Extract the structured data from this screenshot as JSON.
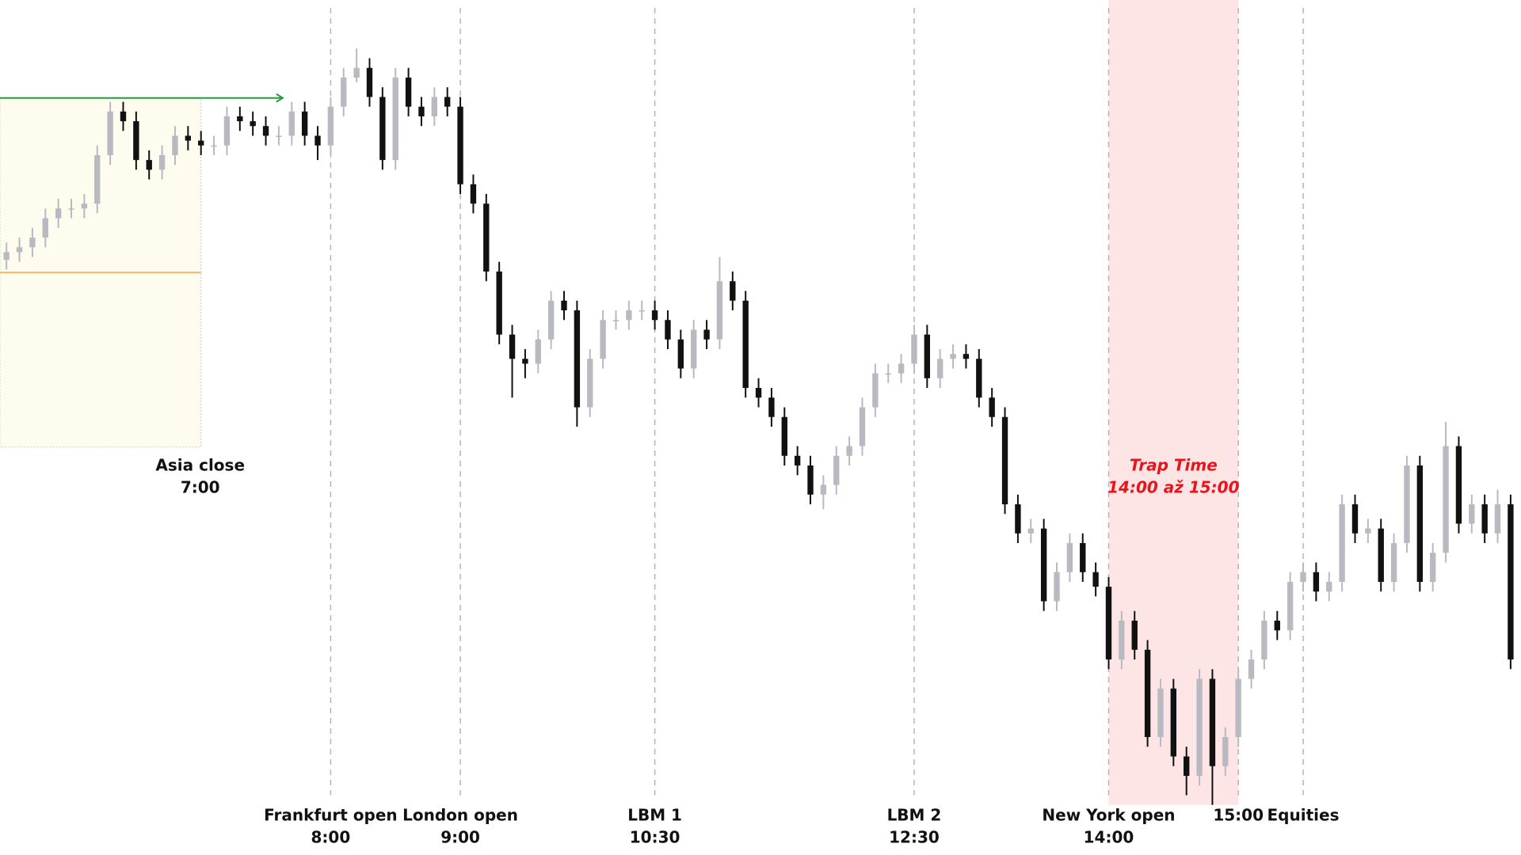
{
  "chart_data": {
    "type": "candlestick",
    "xlim": [
      5.45,
      17.18
    ],
    "ylim": [
      0,
      880
    ],
    "up_color": "#b9b9c2",
    "down_color": "#111111",
    "x": [
      5.5,
      5.6,
      5.7,
      5.8,
      5.9,
      6.0,
      6.1,
      6.2,
      6.3,
      6.4,
      6.5,
      6.6,
      6.7,
      6.8,
      6.9,
      7.0,
      7.1,
      7.2,
      7.3,
      7.4,
      7.5,
      7.6,
      7.7,
      7.8,
      7.9,
      8.0,
      8.1,
      8.2,
      8.3,
      8.4,
      8.5,
      8.6,
      8.7,
      8.8,
      8.9,
      9.0,
      9.1,
      9.2,
      9.3,
      9.4,
      9.5,
      9.6,
      9.7,
      9.8,
      9.9,
      10.0,
      10.1,
      10.2,
      10.3,
      10.4,
      10.5,
      10.6,
      10.7,
      10.8,
      10.9,
      11.0,
      11.1,
      11.2,
      11.3,
      11.4,
      11.5,
      11.6,
      11.7,
      11.8,
      11.9,
      12.0,
      12.1,
      12.2,
      12.3,
      12.4,
      12.5,
      12.6,
      12.7,
      12.8,
      12.9,
      13.0,
      13.1,
      13.2,
      13.3,
      13.4,
      13.5,
      13.6,
      13.7,
      13.8,
      13.9,
      14.0,
      14.1,
      14.2,
      14.3,
      14.4,
      14.5,
      14.6,
      14.7,
      14.8,
      14.9,
      15.0,
      15.1,
      15.2,
      15.3,
      15.4,
      15.5,
      15.6,
      15.7,
      15.8,
      15.9,
      16.0,
      16.1,
      16.2,
      16.3,
      16.4,
      16.5,
      16.6,
      16.7,
      16.8,
      16.9,
      17.0,
      17.1
    ],
    "open": [
      612,
      620,
      625,
      635,
      655,
      665,
      665,
      670,
      720,
      765,
      755,
      715,
      705,
      720,
      740,
      735,
      730,
      730,
      760,
      755,
      750,
      740,
      740,
      765,
      740,
      730,
      770,
      800,
      810,
      780,
      715,
      800,
      770,
      760,
      780,
      770,
      690,
      670,
      600,
      535,
      510,
      505,
      530,
      570,
      560,
      460,
      510,
      550,
      550,
      560,
      560,
      550,
      530,
      500,
      540,
      530,
      590,
      570,
      480,
      470,
      450,
      410,
      400,
      370,
      380,
      410,
      420,
      460,
      495,
      495,
      505,
      535,
      490,
      510,
      515,
      510,
      470,
      450,
      360,
      330,
      335,
      260,
      290,
      320,
      290,
      275,
      200,
      240,
      210,
      120,
      170,
      100,
      80,
      180,
      90,
      120,
      180,
      200,
      240,
      230,
      280,
      290,
      270,
      280,
      360,
      330,
      335,
      280,
      320,
      400,
      280,
      310,
      420,
      340,
      360,
      330,
      360
    ],
    "high": [
      630,
      635,
      645,
      665,
      675,
      675,
      680,
      730,
      775,
      775,
      765,
      725,
      730,
      750,
      750,
      745,
      740,
      770,
      770,
      765,
      760,
      750,
      775,
      775,
      750,
      780,
      810,
      830,
      820,
      790,
      810,
      810,
      780,
      790,
      790,
      780,
      700,
      680,
      610,
      545,
      520,
      540,
      580,
      580,
      570,
      520,
      560,
      560,
      570,
      570,
      570,
      560,
      540,
      550,
      550,
      615,
      600,
      580,
      490,
      480,
      460,
      420,
      410,
      390,
      420,
      430,
      470,
      505,
      505,
      515,
      545,
      545,
      520,
      525,
      525,
      520,
      480,
      460,
      370,
      345,
      345,
      300,
      330,
      330,
      300,
      285,
      250,
      250,
      220,
      180,
      180,
      110,
      190,
      190,
      130,
      190,
      210,
      250,
      250,
      290,
      300,
      300,
      290,
      370,
      370,
      345,
      345,
      330,
      410,
      410,
      320,
      445,
      430,
      370,
      370,
      375,
      370
    ],
    "low": [
      602,
      610,
      615,
      625,
      645,
      655,
      655,
      660,
      710,
      745,
      705,
      695,
      695,
      710,
      725,
      720,
      720,
      720,
      745,
      740,
      730,
      730,
      730,
      730,
      715,
      720,
      760,
      795,
      770,
      705,
      705,
      760,
      750,
      750,
      760,
      680,
      660,
      590,
      525,
      470,
      490,
      495,
      520,
      550,
      440,
      450,
      500,
      540,
      540,
      550,
      540,
      520,
      490,
      490,
      520,
      520,
      560,
      470,
      460,
      440,
      400,
      390,
      360,
      355,
      370,
      400,
      410,
      450,
      485,
      485,
      495,
      480,
      480,
      500,
      500,
      460,
      440,
      350,
      320,
      320,
      250,
      250,
      280,
      280,
      265,
      190,
      190,
      200,
      110,
      110,
      90,
      60,
      70,
      50,
      80,
      110,
      170,
      190,
      220,
      220,
      270,
      260,
      260,
      270,
      320,
      320,
      270,
      270,
      310,
      270,
      270,
      300,
      330,
      330,
      320,
      320,
      190
    ],
    "close": [
      620,
      625,
      635,
      655,
      665,
      665,
      670,
      720,
      765,
      755,
      715,
      705,
      720,
      740,
      735,
      730,
      730,
      760,
      755,
      750,
      740,
      740,
      765,
      740,
      730,
      770,
      800,
      810,
      780,
      715,
      800,
      770,
      760,
      780,
      770,
      690,
      670,
      600,
      535,
      510,
      505,
      530,
      570,
      560,
      460,
      510,
      550,
      550,
      560,
      560,
      550,
      530,
      500,
      540,
      530,
      590,
      570,
      480,
      470,
      450,
      410,
      400,
      370,
      380,
      410,
      420,
      460,
      495,
      495,
      505,
      535,
      490,
      510,
      515,
      510,
      470,
      450,
      360,
      330,
      335,
      260,
      290,
      320,
      290,
      275,
      200,
      240,
      210,
      120,
      170,
      100,
      80,
      180,
      90,
      120,
      180,
      200,
      240,
      230,
      280,
      290,
      270,
      280,
      360,
      330,
      335,
      280,
      320,
      400,
      280,
      310,
      420,
      340,
      360,
      330,
      360,
      200
    ],
    "asia_box": {
      "x": [
        5.45,
        7
      ],
      "y": [
        419,
        779
      ],
      "color": "#fdfcee",
      "border": "#b8dcb0"
    },
    "levels": [
      {
        "y": 779,
        "x": [
          5.45,
          7.63
        ],
        "color": "#1f9e3c"
      },
      {
        "y": 599,
        "x": [
          5.45,
          7
        ],
        "color": "#f7b36a"
      }
    ],
    "asia": {
      "x": 7,
      "label": "Asia close",
      "time": "7:00"
    },
    "sessions": [
      {
        "x": 8,
        "label": "Frankfurt open",
        "time": "8:00"
      },
      {
        "x": 9,
        "label": "London open",
        "time": "9:00"
      },
      {
        "x": 10.5,
        "label": "LBM 1",
        "time": "10:30"
      },
      {
        "x": 12.5,
        "label": "LBM 2",
        "time": "12:30"
      },
      {
        "x": 14,
        "label": "New York open",
        "time": "14:00"
      },
      {
        "x": 15,
        "time": "15:00"
      },
      {
        "x": 15.5,
        "label": "Equities"
      }
    ],
    "trap": {
      "x": [
        14,
        15
      ],
      "label": "Trap Time",
      "text": "14:00 až 15:00",
      "color": "#fde5e5"
    }
  }
}
